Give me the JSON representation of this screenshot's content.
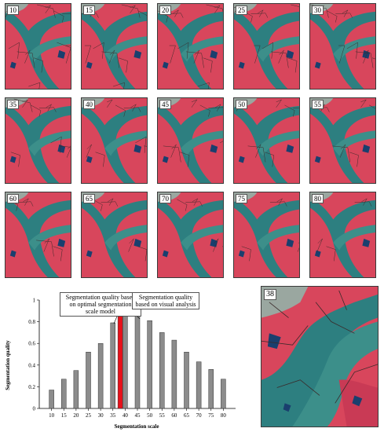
{
  "tiles": [
    "10",
    "15",
    "20",
    "25",
    "30",
    "35",
    "40",
    "45",
    "50",
    "55",
    "60",
    "65",
    "70",
    "75",
    "80"
  ],
  "highlight_tile": "38",
  "colors": {
    "vegetation": "#d8465c",
    "water": "#2d7f80",
    "river_dark": "#1f5f64",
    "soil": "#9aa7a0",
    "highlight_bar": "#e8101a",
    "bar": "#8c8c8c"
  },
  "callouts": {
    "left": "Segmentation quality based on optimal segmentation scale model",
    "right": "Segmentation quality based on visual analysis"
  },
  "chart_data": {
    "type": "bar",
    "categories": [
      "10",
      "15",
      "20",
      "25",
      "30",
      "35",
      "38",
      "40",
      "45",
      "50",
      "55",
      "60",
      "65",
      "70",
      "75",
      "80"
    ],
    "x": [
      10,
      15,
      20,
      25,
      30,
      35,
      38,
      40,
      45,
      50,
      55,
      60,
      65,
      70,
      75,
      80
    ],
    "values": [
      0.17,
      0.27,
      0.35,
      0.52,
      0.6,
      0.79,
      1.0,
      0.95,
      0.88,
      0.81,
      0.7,
      0.63,
      0.52,
      0.43,
      0.36,
      0.27
    ],
    "highlight_label": "38",
    "xlabel": "Segmentation scale",
    "ylabel": "Segmentation quality",
    "xticks": [
      "10",
      "15",
      "20",
      "25",
      "30",
      "35",
      "40",
      "45",
      "50",
      "55",
      "60",
      "65",
      "70",
      "75",
      "80"
    ],
    "yticks": [
      "0",
      "0.2",
      "0.4",
      "0.6",
      "0.8",
      "1"
    ],
    "ylim": [
      0,
      1
    ],
    "grid": false
  }
}
